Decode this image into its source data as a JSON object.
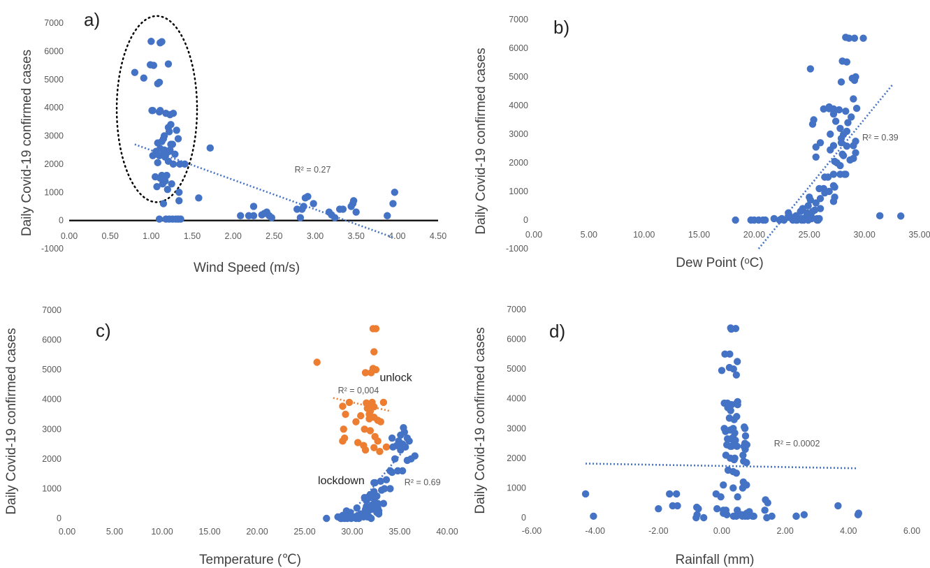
{
  "chart_data": [
    {
      "type": "scatter",
      "panel_label": "a)",
      "xlabel": "Wind Speed (m/s)",
      "ylabel": "Daily Covid-19 confirmed cases",
      "xlim": [
        0,
        4.5
      ],
      "ylim": [
        -1000,
        7000
      ],
      "xticks": [
        "0.00",
        "0.50",
        "1.00",
        "1.50",
        "2.00",
        "2.50",
        "3.00",
        "3.50",
        "4.00",
        "4.50"
      ],
      "yticks": [
        "-1000",
        "0",
        "1000",
        "2000",
        "3000",
        "4000",
        "5000",
        "6000",
        "7000"
      ],
      "zero_line": true,
      "annotations": [
        {
          "text": "R² = 0.27",
          "x": 2.75,
          "y": 1700
        }
      ],
      "highlight_ellipse": {
        "cx": 1.07,
        "cy": 3950,
        "rx": 0.49,
        "ry": 3300
      },
      "trendlines": [
        {
          "x": [
            0.8,
            3.95
          ],
          "y": [
            2700,
            -600
          ],
          "color": "#4472c4"
        }
      ],
      "series": [
        {
          "color": "#4472c4",
          "x": [
            1.0,
            1.11,
            1.13,
            0.99,
            0.8,
            1.03,
            1.21,
            0.91,
            1.08,
            1.1,
            1.01,
            1.02,
            1.11,
            1.1,
            1.18,
            1.27,
            1.23,
            1.31,
            1.24,
            1.21,
            1.22,
            1.16,
            1.15,
            1.33,
            1.13,
            1.08,
            1.26,
            1.24,
            1.11,
            1.23,
            1.16,
            1.22,
            1.06,
            1.19,
            1.05,
            1.15,
            1.29,
            1.02,
            1.1,
            1.17,
            1.21,
            1.08,
            1.27,
            1.35,
            1.41,
            1.19,
            1.13,
            1.05,
            1.11,
            1.17,
            1.14,
            1.25,
            1.07,
            1.2,
            1.34,
            1.34,
            1.15,
            1.58,
            1.72,
            1.1,
            1.18,
            1.22,
            1.26,
            1.3,
            1.33,
            1.36,
            2.09,
            2.25,
            2.19,
            2.25,
            2.35,
            2.38,
            2.41,
            2.44,
            2.47,
            2.78,
            2.84,
            2.86,
            2.88,
            2.91,
            2.98,
            2.82,
            3.2,
            3.24,
            3.17,
            3.3,
            3.34,
            3.44,
            3.46,
            3.47,
            3.5,
            3.88,
            3.95,
            3.97
          ],
          "y": [
            6350,
            6300,
            6340,
            5520,
            5250,
            5500,
            5550,
            5050,
            4850,
            4900,
            3900,
            3900,
            3900,
            3850,
            3800,
            3800,
            3750,
            3200,
            3400,
            3300,
            3150,
            3000,
            2900,
            2900,
            2800,
            2750,
            2700,
            2700,
            2550,
            2500,
            2500,
            2450,
            2450,
            2400,
            2350,
            2350,
            2350,
            2300,
            2300,
            2250,
            2100,
            2050,
            2000,
            2000,
            2000,
            1600,
            1600,
            1550,
            1500,
            1400,
            1300,
            1300,
            1200,
            1100,
            1000,
            700,
            600,
            800,
            2570,
            50,
            50,
            50,
            50,
            50,
            50,
            50,
            170,
            170,
            170,
            500,
            200,
            250,
            300,
            170,
            100,
            400,
            400,
            500,
            800,
            850,
            600,
            100,
            200,
            100,
            300,
            400,
            400,
            500,
            600,
            700,
            300,
            170,
            600,
            1000
          ]
        }
      ]
    },
    {
      "type": "scatter",
      "panel_label": "b)",
      "xlabel": "Dew Point (ᵒC)",
      "ylabel": "Daily Covid-19 confirmed cases",
      "xlim": [
        0,
        35
      ],
      "ylim": [
        -1000,
        7000
      ],
      "xticks": [
        "0.00",
        "5.00",
        "10.00",
        "15.00",
        "20.00",
        "25.00",
        "30.00",
        "35.00"
      ],
      "yticks": [
        "-1000",
        "0",
        "1000",
        "2000",
        "3000",
        "4000",
        "5000",
        "6000",
        "7000"
      ],
      "zero_line": false,
      "annotations": [
        {
          "text": "R² = 0.39",
          "x": 29.8,
          "y": 2780
        }
      ],
      "trendlines": [
        {
          "x": [
            20.4,
            32.6
          ],
          "y": [
            -1000,
            4750
          ],
          "color": "#4472c4"
        }
      ],
      "series": [
        {
          "color": "#4472c4",
          "x": [
            28.3,
            28.6,
            29.1,
            29.9,
            28.0,
            28.4,
            29.2,
            25.1,
            28.9,
            29.1,
            27.9,
            29.0,
            26.3,
            26.8,
            27.2,
            26.8,
            27.7,
            28.3,
            27.2,
            29.3,
            28.8,
            25.4,
            27.4,
            28.5,
            25.3,
            27.8,
            28.4,
            26.9,
            28.1,
            27.9,
            29.2,
            26.0,
            27.9,
            29.0,
            27.2,
            28.4,
            25.6,
            26.9,
            29.2,
            28.0,
            28.1,
            25.6,
            29.0,
            28.7,
            27.3,
            27.5,
            27.8,
            27.8,
            27.2,
            28.2,
            28.3,
            26.4,
            26.7,
            27.2,
            27.3,
            26.3,
            25.9,
            26.8,
            26.4,
            27.3,
            25.1,
            25.0,
            26.0,
            27.2,
            25.6,
            24.9,
            24.4,
            26.0,
            25.5,
            24.2,
            25.3,
            24.8,
            23.1,
            24.8,
            25.0,
            23.8,
            23.2,
            24.7,
            25.2,
            23.1,
            24.1,
            25.9,
            24.4,
            24.9,
            25.1,
            24.3,
            25.2,
            25.7,
            24.7,
            22.5,
            21.8,
            24.4,
            25.7,
            23.8,
            22.7,
            24.9,
            24.3,
            25.8,
            24.5,
            23.5,
            22.7,
            24.9,
            23.9,
            22.3,
            21.0,
            20.8,
            20.4,
            20.0,
            19.7,
            18.3,
            31.4,
            33.3
          ],
          "y": [
            6380,
            6350,
            6350,
            6350,
            5550,
            5520,
            5000,
            5280,
            4950,
            4880,
            4820,
            4230,
            3880,
            3890,
            3880,
            3950,
            3850,
            3800,
            3700,
            3900,
            3600,
            3500,
            3450,
            3400,
            3350,
            3200,
            3100,
            3000,
            2990,
            2850,
            2750,
            2700,
            2700,
            2600,
            2600,
            2580,
            2550,
            2450,
            2350,
            2300,
            2250,
            2200,
            2150,
            2100,
            2050,
            2000,
            1900,
            1600,
            1600,
            1600,
            1600,
            1500,
            1500,
            1200,
            1150,
            1100,
            1100,
            1000,
            950,
            800,
            700,
            800,
            750,
            650,
            600,
            500,
            400,
            400,
            350,
            300,
            300,
            250,
            250,
            200,
            200,
            150,
            150,
            100,
            100,
            100,
            50,
            50,
            50,
            50,
            50,
            50,
            50,
            50,
            50,
            50,
            50,
            50,
            0,
            0,
            0,
            0,
            0,
            0,
            0,
            0,
            0,
            0,
            0,
            0,
            0,
            0,
            0,
            0,
            0,
            0,
            150,
            140
          ]
        }
      ]
    },
    {
      "type": "scatter",
      "panel_label": "c)",
      "xlabel": "Temperature (℃)",
      "ylabel": "Daily Covid-19 confirmed cases",
      "xlim": [
        0,
        40
      ],
      "ylim": [
        0,
        7000
      ],
      "xticks": [
        "0.00",
        "5.00",
        "10.00",
        "15.00",
        "20.00",
        "25.00",
        "30.00",
        "35.00",
        "40.00"
      ],
      "yticks": [
        "0",
        "1000",
        "2000",
        "3000",
        "4000",
        "5000",
        "6000",
        "7000"
      ],
      "zero_line": false,
      "annotations": [
        {
          "text": "unlock",
          "x": 32.9,
          "y": 4610,
          "kind": "label"
        },
        {
          "text": "R² = 0,004",
          "x": 28.5,
          "y": 4200
        },
        {
          "text": "lockdown",
          "x": 26.4,
          "y": 1150,
          "kind": "label"
        },
        {
          "text": "R² = 0.69",
          "x": 35.5,
          "y": 1120
        }
      ],
      "trendlines": [
        {
          "x": [
            28.0,
            34.1
          ],
          "y": [
            4050,
            3600
          ],
          "color": "#ed7d31"
        },
        {
          "x": [
            29.6,
            36.1
          ],
          "y": [
            50,
            2550
          ],
          "color": "#4472c4"
        }
      ],
      "series": [
        {
          "name": "unlock",
          "color": "#ed7d31",
          "x": [
            32.2,
            32.5,
            32.3,
            26.3,
            32.2,
            32.5,
            31.4,
            32.0,
            29.7,
            33.3,
            31.5,
            32.1,
            32.0,
            29.0,
            32.3,
            31.6,
            31.9,
            31.8,
            29.3,
            30.9,
            32.3,
            31.8,
            32.7,
            30.4,
            33.0,
            29.1,
            31.3,
            31.9,
            32.4,
            29.2,
            29.0,
            32.7,
            30.6,
            31.2,
            33.6,
            32.3,
            31.4,
            32.9
          ],
          "y": [
            6380,
            6380,
            5600,
            5250,
            5040,
            5000,
            4900,
            4900,
            3900,
            3900,
            3880,
            3900,
            3850,
            3770,
            3750,
            3700,
            3600,
            3500,
            3500,
            3450,
            3400,
            3350,
            3300,
            3250,
            3250,
            3000,
            3000,
            2950,
            2750,
            2700,
            2600,
            2600,
            2550,
            2450,
            2400,
            2380,
            2300,
            2250
          ]
        },
        {
          "name": "lockdown",
          "color": "#4472c4",
          "x": [
            35.4,
            35.5,
            35.1,
            35.8,
            34.2,
            34.9,
            36.0,
            35.3,
            34.7,
            34.3,
            35.6,
            35.1,
            36.6,
            36.2,
            34.5,
            35.8,
            35.3,
            34.0,
            34.8,
            34.2,
            33.6,
            33.0,
            32.4,
            32.3,
            33.4,
            34.0,
            33.1,
            32.3,
            31.9,
            32.6,
            31.3,
            32.0,
            31.5,
            31.5,
            32.4,
            33.3,
            32.7,
            32.1,
            32.3,
            31.5,
            30.5,
            31.8,
            32.7,
            32.4,
            32.0,
            31.4,
            29.4,
            32.8,
            32.6,
            31.6,
            29.8,
            30.9,
            32.8,
            31.1,
            30.6,
            31.5,
            29.0,
            30.1,
            31.8,
            28.5,
            29.7,
            30.3,
            30.8,
            31.6,
            29.5,
            31.2,
            30.4,
            29.9,
            32.0,
            27.3,
            28.8,
            28.9,
            29.5,
            29.2,
            30.7
          ],
          "y": [
            3050,
            2900,
            2800,
            2700,
            2700,
            2600,
            2600,
            2500,
            2450,
            2400,
            2400,
            2300,
            2100,
            2000,
            2000,
            1950,
            1600,
            1600,
            1600,
            1550,
            1300,
            1250,
            1200,
            1200,
            1000,
            1000,
            950,
            900,
            800,
            750,
            700,
            700,
            600,
            600,
            550,
            500,
            500,
            450,
            450,
            400,
            350,
            350,
            350,
            300,
            300,
            300,
            250,
            250,
            200,
            200,
            200,
            150,
            150,
            150,
            100,
            100,
            100,
            50,
            50,
            50,
            50,
            50,
            50,
            50,
            50,
            50,
            0,
            0,
            0,
            0,
            0,
            0,
            0,
            0,
            0
          ]
        }
      ]
    },
    {
      "type": "scatter",
      "panel_label": "d)",
      "xlabel": "Rainfall (mm)",
      "ylabel": "Daily Covid-19 confirmed cases",
      "xlim": [
        -6,
        6
      ],
      "ylim": [
        0,
        7000
      ],
      "xticks": [
        "-6.00",
        "-4.00",
        "-2.00",
        "0.00",
        "2.00",
        "4.00",
        "6.00"
      ],
      "yticks": [
        "0",
        "1000",
        "2000",
        "3000",
        "4000",
        "5000",
        "6000",
        "7000"
      ],
      "zero_line": false,
      "annotations": [
        {
          "text": "R² = 0.0002",
          "x": 1.65,
          "y": 2400
        }
      ],
      "trendlines": [
        {
          "x": [
            -4.3,
            4.3
          ],
          "y": [
            1820,
            1660
          ],
          "color": "#4472c4"
        }
      ],
      "series": [
        {
          "color": "#4472c4",
          "x": [
            0.28,
            0.44,
            0.3,
            0.25,
            0.49,
            0.1,
            0.24,
            0.37,
            0.0,
            0.46,
            0.5,
            0.08,
            0.47,
            0.18,
            0.31,
            0.5,
            0.19,
            0.28,
            0.47,
            0.24,
            0.39,
            0.71,
            0.73,
            0.36,
            0.08,
            0.27,
            0.12,
            0.41,
            0.75,
            0.36,
            0.29,
            0.18,
            0.43,
            0.4,
            0.73,
            0.16,
            0.79,
            0.31,
            0.48,
            0.27,
            0.7,
            0.74,
            0.13,
            0.67,
            0.27,
            0.41,
            0.39,
            0.69,
            0.78,
            0.2,
            0.36,
            0.46,
            0.68,
            0.78,
            0.05,
            0.66,
            0.36,
            -4.3,
            -1.65,
            -1.43,
            -0.18,
            -0.03,
            0.5,
            1.38,
            1.45,
            3.67,
            -1.55,
            -1.4,
            -0.79,
            -0.74,
            -0.15,
            0.05,
            0.13,
            0.49,
            1.36,
            2.35,
            2.35,
            0.46,
            0.37,
            0.74,
            0.82,
            0.65,
            0.97,
            1.58,
            1.01,
            -0.81,
            -0.57,
            -2.0,
            0.05,
            1.42,
            -4.05,
            -0.78,
            0.16,
            0.49,
            0.62,
            0.72,
            0.79,
            0.87,
            2.6,
            4.3,
            4.32
          ],
          "y": [
            6380,
            6360,
            6340,
            5500,
            5250,
            5500,
            5050,
            5000,
            4950,
            4800,
            3900,
            3850,
            3850,
            3850,
            3800,
            3800,
            3700,
            3600,
            3400,
            3350,
            3300,
            3050,
            3000,
            3000,
            3000,
            2950,
            2900,
            2850,
            2750,
            2700,
            2650,
            2650,
            2600,
            2550,
            2500,
            2450,
            2450,
            2400,
            2400,
            2400,
            2400,
            2300,
            2100,
            2100,
            2000,
            2000,
            1950,
            1900,
            1850,
            1600,
            1550,
            1500,
            1200,
            1100,
            1100,
            1000,
            1000,
            800,
            800,
            800,
            800,
            700,
            700,
            600,
            500,
            400,
            400,
            400,
            350,
            300,
            300,
            250,
            250,
            250,
            250,
            50,
            50,
            50,
            50,
            50,
            50,
            50,
            50,
            50,
            50,
            0,
            0,
            300,
            150,
            0,
            50,
            100,
            100,
            100,
            100,
            100,
            150,
            200,
            100,
            100,
            150
          ]
        }
      ]
    }
  ]
}
